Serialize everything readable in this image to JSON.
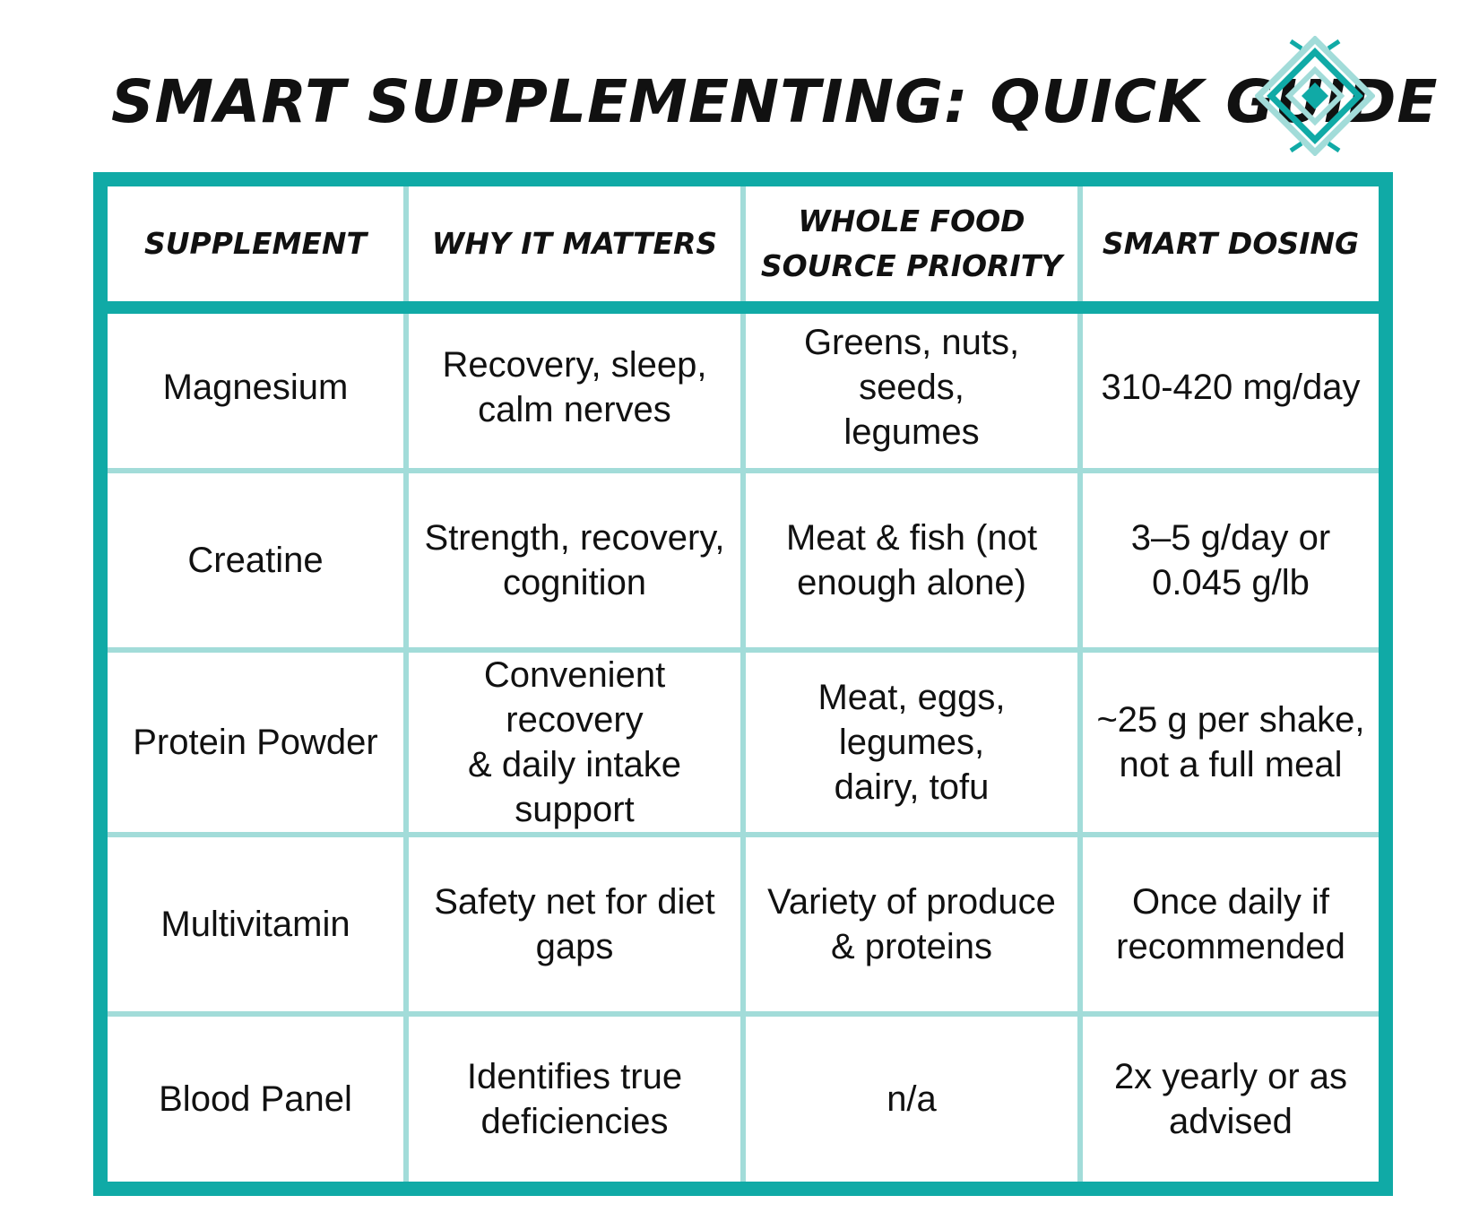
{
  "title": "SMART SUPPLEMENTING: QUICK GUIDE",
  "logo": {
    "icon_name": "teal-diamond-logo-icon",
    "colors": [
      "#10aaa6",
      "#a2dcd9"
    ]
  },
  "colors": {
    "frame": "#10aaa6",
    "grid_lines": "#a2dcd9",
    "text": "#111111",
    "background": "#ffffff"
  },
  "table": {
    "headers": [
      "SUPPLEMENT",
      "WHY IT MATTERS",
      "WHOLE FOOD\nSOURCE PRIORITY",
      "SMART DOSING"
    ],
    "rows": [
      {
        "supplement": "Magnesium",
        "why": "Recovery, sleep,\ncalm nerves",
        "source": "Greens, nuts, seeds,\nlegumes",
        "dosing": "310-420 mg/day"
      },
      {
        "supplement": "Creatine",
        "why": "Strength, recovery,\ncognition",
        "source": "Meat & fish (not\nenough alone)",
        "dosing": "3–5 g/day or\n0.045 g/lb"
      },
      {
        "supplement": "Protein Powder",
        "why": "Convenient recovery\n& daily intake\nsupport",
        "source": "Meat, eggs, legumes,\ndairy, tofu",
        "dosing": "~25 g per shake,\nnot a full meal"
      },
      {
        "supplement": "Multivitamin",
        "why": "Safety net for diet\ngaps",
        "source": "Variety of produce\n& proteins",
        "dosing": "Once daily if\nrecommended"
      },
      {
        "supplement": "Blood Panel",
        "why": "Identifies true\ndeficiencies",
        "source": "n/a",
        "dosing": "2x yearly or as\nadvised"
      }
    ]
  }
}
